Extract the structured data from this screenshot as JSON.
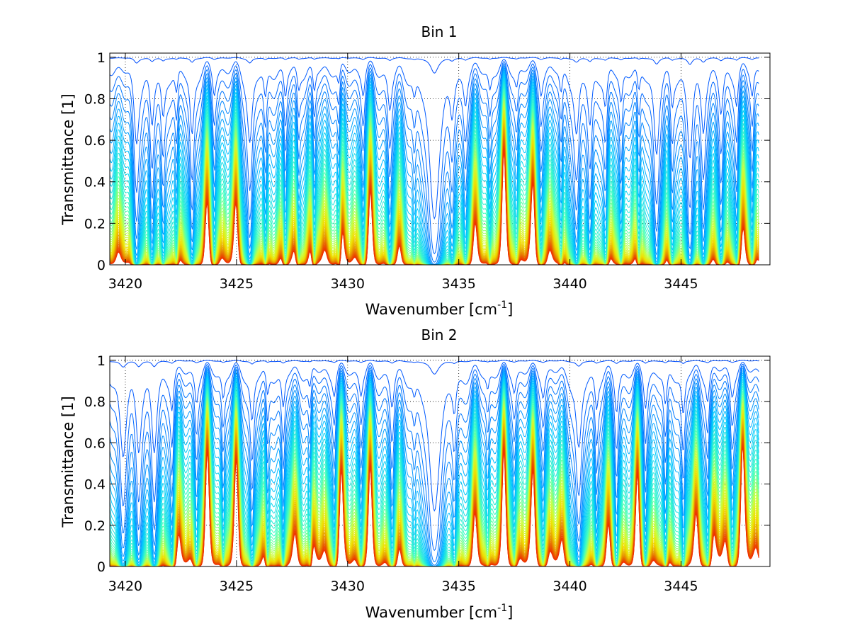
{
  "chart_data": [
    {
      "type": "line",
      "title": "Bin 1",
      "xlabel": "Wavenumber [cm",
      "xlabel_sup": "-1",
      "xlabel_end": "]",
      "ylabel": "Transmittance [1]",
      "xlim": [
        3419.3,
        3449.0
      ],
      "ylim": [
        0,
        1.02
      ],
      "xticks": [
        "3420",
        "3425",
        "3430",
        "3435",
        "3440",
        "3445"
      ],
      "yticks": [
        "0",
        "0.2",
        "0.4",
        "0.6",
        "0.8",
        "1"
      ],
      "grid": true,
      "legend": "none",
      "series_count": 60,
      "series_min_level": 0.005,
      "series_max_level": 0.995,
      "data_x_range": [
        3419.3,
        3448.5
      ],
      "color_map": [
        "#0000b0",
        "#0050ff",
        "#00c8ff",
        "#40ffc0",
        "#c8ff40",
        "#f0e000",
        "#e8a000",
        "#e86000",
        "#f03000"
      ],
      "absorption_lines": [
        {
          "x": 3420.5,
          "depth": 0.25,
          "width": 0.12
        },
        {
          "x": 3421.2,
          "depth": 0.18,
          "width": 0.1
        },
        {
          "x": 3421.7,
          "depth": 0.15,
          "width": 0.1
        },
        {
          "x": 3422.3,
          "depth": 0.08,
          "width": 0.08
        },
        {
          "x": 3423.0,
          "depth": 0.22,
          "width": 0.1
        },
        {
          "x": 3424.0,
          "depth": 0.07,
          "width": 0.08
        },
        {
          "x": 3425.6,
          "depth": 0.25,
          "width": 0.12
        },
        {
          "x": 3426.3,
          "depth": 0.1,
          "width": 0.09
        },
        {
          "x": 3427.2,
          "depth": 0.09,
          "width": 0.08
        },
        {
          "x": 3427.8,
          "depth": 0.06,
          "width": 0.08
        },
        {
          "x": 3428.5,
          "depth": 0.08,
          "width": 0.08
        },
        {
          "x": 3429.6,
          "depth": 0.06,
          "width": 0.08
        },
        {
          "x": 3430.7,
          "depth": 0.07,
          "width": 0.08
        },
        {
          "x": 3431.9,
          "depth": 0.12,
          "width": 0.1
        },
        {
          "x": 3433.0,
          "depth": 0.06,
          "width": 0.08
        },
        {
          "x": 3433.9,
          "depth": 0.75,
          "width": 0.2
        },
        {
          "x": 3434.7,
          "depth": 0.12,
          "width": 0.1
        },
        {
          "x": 3435.3,
          "depth": 0.08,
          "width": 0.08
        },
        {
          "x": 3436.4,
          "depth": 0.06,
          "width": 0.08
        },
        {
          "x": 3437.6,
          "depth": 0.05,
          "width": 0.08
        },
        {
          "x": 3438.7,
          "depth": 0.06,
          "width": 0.08
        },
        {
          "x": 3439.6,
          "depth": 0.08,
          "width": 0.08
        },
        {
          "x": 3440.3,
          "depth": 0.22,
          "width": 0.12
        },
        {
          "x": 3440.9,
          "depth": 0.18,
          "width": 0.1
        },
        {
          "x": 3441.6,
          "depth": 0.12,
          "width": 0.1
        },
        {
          "x": 3442.3,
          "depth": 0.1,
          "width": 0.08
        },
        {
          "x": 3443.1,
          "depth": 0.08,
          "width": 0.08
        },
        {
          "x": 3443.9,
          "depth": 0.3,
          "width": 0.12
        },
        {
          "x": 3444.6,
          "depth": 0.1,
          "width": 0.08
        },
        {
          "x": 3445.4,
          "depth": 0.32,
          "width": 0.12
        },
        {
          "x": 3446.0,
          "depth": 0.18,
          "width": 0.1
        },
        {
          "x": 3446.8,
          "depth": 0.14,
          "width": 0.1
        },
        {
          "x": 3447.5,
          "depth": 0.1,
          "width": 0.08
        },
        {
          "x": 3448.2,
          "depth": 0.08,
          "width": 0.08
        }
      ]
    },
    {
      "type": "line",
      "title": "Bin 2",
      "xlabel": "Wavenumber [cm",
      "xlabel_sup": "-1",
      "xlabel_end": "]",
      "ylabel": "Transmittance [1]",
      "xlim": [
        3419.3,
        3449.0
      ],
      "ylim": [
        0,
        1.02
      ],
      "xticks": [
        "3420",
        "3425",
        "3430",
        "3435",
        "3440",
        "3445"
      ],
      "yticks": [
        "0",
        "0.2",
        "0.4",
        "0.6",
        "0.8",
        "1"
      ],
      "grid": true,
      "legend": "none",
      "series_count": 60,
      "series_min_level": 0.005,
      "series_max_level": 0.995,
      "data_x_range": [
        3419.3,
        3448.5
      ],
      "color_map": [
        "#0000b0",
        "#0050ff",
        "#00c8ff",
        "#40ffc0",
        "#c8ff40",
        "#f0e000",
        "#e8a000",
        "#e86000",
        "#f03000"
      ],
      "absorption_lines": [
        {
          "x": 3419.9,
          "depth": 0.3,
          "width": 0.15
        },
        {
          "x": 3420.6,
          "depth": 0.25,
          "width": 0.12
        },
        {
          "x": 3421.3,
          "depth": 0.28,
          "width": 0.12
        },
        {
          "x": 3422.1,
          "depth": 0.1,
          "width": 0.08
        },
        {
          "x": 3423.2,
          "depth": 0.08,
          "width": 0.08
        },
        {
          "x": 3424.4,
          "depth": 0.08,
          "width": 0.08
        },
        {
          "x": 3425.7,
          "depth": 0.16,
          "width": 0.1
        },
        {
          "x": 3426.4,
          "depth": 0.08,
          "width": 0.08
        },
        {
          "x": 3427.1,
          "depth": 0.12,
          "width": 0.09
        },
        {
          "x": 3428.3,
          "depth": 0.06,
          "width": 0.08
        },
        {
          "x": 3429.4,
          "depth": 0.06,
          "width": 0.08
        },
        {
          "x": 3430.6,
          "depth": 0.06,
          "width": 0.08
        },
        {
          "x": 3432.0,
          "depth": 0.1,
          "width": 0.09
        },
        {
          "x": 3433.0,
          "depth": 0.05,
          "width": 0.08
        },
        {
          "x": 3433.9,
          "depth": 0.65,
          "width": 0.22
        },
        {
          "x": 3434.8,
          "depth": 0.1,
          "width": 0.09
        },
        {
          "x": 3436.3,
          "depth": 0.05,
          "width": 0.08
        },
        {
          "x": 3437.5,
          "depth": 0.05,
          "width": 0.08
        },
        {
          "x": 3438.8,
          "depth": 0.06,
          "width": 0.08
        },
        {
          "x": 3440.4,
          "depth": 0.28,
          "width": 0.14
        },
        {
          "x": 3441.2,
          "depth": 0.1,
          "width": 0.08
        },
        {
          "x": 3442.1,
          "depth": 0.12,
          "width": 0.09
        },
        {
          "x": 3443.4,
          "depth": 0.1,
          "width": 0.08
        },
        {
          "x": 3444.3,
          "depth": 0.12,
          "width": 0.09
        },
        {
          "x": 3445.1,
          "depth": 0.14,
          "width": 0.09
        },
        {
          "x": 3446.2,
          "depth": 0.08,
          "width": 0.08
        },
        {
          "x": 3447.3,
          "depth": 0.06,
          "width": 0.08
        }
      ]
    }
  ]
}
